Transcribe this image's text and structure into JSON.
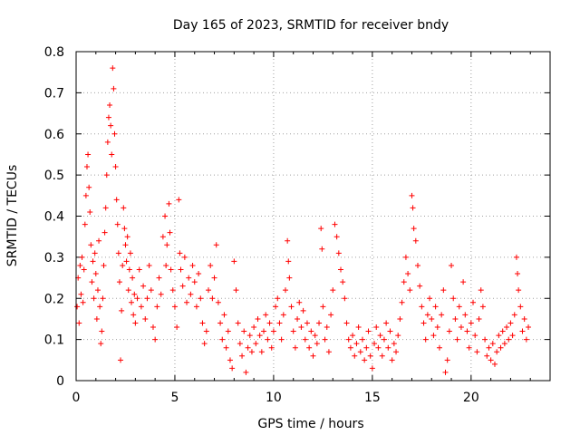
{
  "chart_data": {
    "type": "scatter",
    "title": "Day 165 of 2023, SRMTID for receiver bndy",
    "xlabel": "GPS time / hours",
    "ylabel": "SRMTID / TECUs",
    "xlim": [
      0,
      24
    ],
    "ylim": [
      0,
      0.8
    ],
    "xticks": [
      0,
      5,
      10,
      15,
      20
    ],
    "xtick_labels": [
      "0",
      "5",
      "10",
      "15",
      "20"
    ],
    "yticks": [
      0,
      0.1,
      0.2,
      0.3,
      0.4,
      0.5,
      0.6,
      0.7,
      0.8
    ],
    "ytick_labels": [
      "0",
      "0.1",
      "0.2",
      "0.3",
      "0.4",
      "0.5",
      "0.6",
      "0.7",
      "0.8"
    ],
    "grid": true,
    "marker": "plus",
    "color": "#ff0000",
    "series": [
      {
        "name": "SRMTID",
        "points": [
          [
            0.05,
            0.18
          ],
          [
            0.1,
            0.25
          ],
          [
            0.15,
            0.14
          ],
          [
            0.2,
            0.28
          ],
          [
            0.25,
            0.21
          ],
          [
            0.3,
            0.3
          ],
          [
            0.35,
            0.19
          ],
          [
            0.4,
            0.27
          ],
          [
            0.45,
            0.38
          ],
          [
            0.5,
            0.45
          ],
          [
            0.55,
            0.52
          ],
          [
            0.6,
            0.55
          ],
          [
            0.65,
            0.47
          ],
          [
            0.7,
            0.41
          ],
          [
            0.75,
            0.33
          ],
          [
            0.8,
            0.24
          ],
          [
            0.85,
            0.29
          ],
          [
            0.9,
            0.2
          ],
          [
            0.95,
            0.31
          ],
          [
            1.0,
            0.26
          ],
          [
            1.05,
            0.15
          ],
          [
            1.1,
            0.22
          ],
          [
            1.15,
            0.34
          ],
          [
            1.2,
            0.18
          ],
          [
            1.25,
            0.09
          ],
          [
            1.3,
            0.12
          ],
          [
            1.35,
            0.2
          ],
          [
            1.4,
            0.28
          ],
          [
            1.45,
            0.36
          ],
          [
            1.5,
            0.42
          ],
          [
            1.55,
            0.5
          ],
          [
            1.6,
            0.58
          ],
          [
            1.65,
            0.64
          ],
          [
            1.7,
            0.67
          ],
          [
            1.75,
            0.62
          ],
          [
            1.8,
            0.55
          ],
          [
            1.85,
            0.76
          ],
          [
            1.9,
            0.71
          ],
          [
            1.95,
            0.6
          ],
          [
            2.0,
            0.52
          ],
          [
            2.05,
            0.44
          ],
          [
            2.1,
            0.38
          ],
          [
            2.15,
            0.31
          ],
          [
            2.2,
            0.24
          ],
          [
            2.25,
            0.05
          ],
          [
            2.3,
            0.17
          ],
          [
            2.35,
            0.28
          ],
          [
            2.4,
            0.42
          ],
          [
            2.45,
            0.37
          ],
          [
            2.5,
            0.33
          ],
          [
            2.55,
            0.29
          ],
          [
            2.6,
            0.35
          ],
          [
            2.65,
            0.22
          ],
          [
            2.7,
            0.27
          ],
          [
            2.75,
            0.31
          ],
          [
            2.8,
            0.19
          ],
          [
            2.85,
            0.25
          ],
          [
            2.9,
            0.16
          ],
          [
            2.95,
            0.21
          ],
          [
            3.0,
            0.14
          ],
          [
            3.1,
            0.2
          ],
          [
            3.2,
            0.27
          ],
          [
            3.3,
            0.18
          ],
          [
            3.4,
            0.23
          ],
          [
            3.5,
            0.15
          ],
          [
            3.6,
            0.2
          ],
          [
            3.7,
            0.28
          ],
          [
            3.8,
            0.22
          ],
          [
            3.9,
            0.13
          ],
          [
            4.0,
            0.1
          ],
          [
            4.1,
            0.18
          ],
          [
            4.2,
            0.25
          ],
          [
            4.3,
            0.21
          ],
          [
            4.4,
            0.35
          ],
          [
            4.5,
            0.4
          ],
          [
            4.55,
            0.28
          ],
          [
            4.6,
            0.33
          ],
          [
            4.7,
            0.43
          ],
          [
            4.75,
            0.36
          ],
          [
            4.8,
            0.27
          ],
          [
            4.9,
            0.22
          ],
          [
            5.0,
            0.18
          ],
          [
            5.1,
            0.13
          ],
          [
            5.2,
            0.44
          ],
          [
            5.25,
            0.31
          ],
          [
            5.3,
            0.27
          ],
          [
            5.4,
            0.23
          ],
          [
            5.5,
            0.3
          ],
          [
            5.6,
            0.19
          ],
          [
            5.7,
            0.25
          ],
          [
            5.8,
            0.21
          ],
          [
            5.9,
            0.28
          ],
          [
            6.0,
            0.24
          ],
          [
            6.1,
            0.18
          ],
          [
            6.2,
            0.26
          ],
          [
            6.3,
            0.2
          ],
          [
            6.4,
            0.14
          ],
          [
            6.5,
            0.09
          ],
          [
            6.6,
            0.12
          ],
          [
            6.7,
            0.22
          ],
          [
            6.8,
            0.28
          ],
          [
            6.9,
            0.2
          ],
          [
            7.0,
            0.25
          ],
          [
            7.1,
            0.33
          ],
          [
            7.2,
            0.19
          ],
          [
            7.3,
            0.14
          ],
          [
            7.4,
            0.1
          ],
          [
            7.5,
            0.16
          ],
          [
            7.6,
            0.08
          ],
          [
            7.7,
            0.12
          ],
          [
            7.8,
            0.05
          ],
          [
            7.9,
            0.03
          ],
          [
            8.0,
            0.29
          ],
          [
            8.1,
            0.22
          ],
          [
            8.2,
            0.14
          ],
          [
            8.3,
            0.09
          ],
          [
            8.4,
            0.06
          ],
          [
            8.5,
            0.12
          ],
          [
            8.6,
            0.02
          ],
          [
            8.7,
            0.08
          ],
          [
            8.8,
            0.11
          ],
          [
            8.9,
            0.07
          ],
          [
            9.0,
            0.13
          ],
          [
            9.1,
            0.09
          ],
          [
            9.2,
            0.15
          ],
          [
            9.3,
            0.11
          ],
          [
            9.4,
            0.07
          ],
          [
            9.5,
            0.12
          ],
          [
            9.6,
            0.16
          ],
          [
            9.7,
            0.1
          ],
          [
            9.8,
            0.14
          ],
          [
            9.9,
            0.08
          ],
          [
            10.0,
            0.12
          ],
          [
            10.1,
            0.18
          ],
          [
            10.2,
            0.2
          ],
          [
            10.3,
            0.14
          ],
          [
            10.4,
            0.1
          ],
          [
            10.5,
            0.16
          ],
          [
            10.6,
            0.22
          ],
          [
            10.7,
            0.34
          ],
          [
            10.75,
            0.29
          ],
          [
            10.8,
            0.25
          ],
          [
            10.9,
            0.18
          ],
          [
            11.0,
            0.12
          ],
          [
            11.1,
            0.08
          ],
          [
            11.2,
            0.15
          ],
          [
            11.3,
            0.19
          ],
          [
            11.4,
            0.13
          ],
          [
            11.5,
            0.17
          ],
          [
            11.6,
            0.1
          ],
          [
            11.7,
            0.14
          ],
          [
            11.8,
            0.08
          ],
          [
            11.9,
            0.12
          ],
          [
            12.0,
            0.06
          ],
          [
            12.1,
            0.11
          ],
          [
            12.2,
            0.09
          ],
          [
            12.3,
            0.14
          ],
          [
            12.4,
            0.37
          ],
          [
            12.45,
            0.32
          ],
          [
            12.5,
            0.18
          ],
          [
            12.6,
            0.1
          ],
          [
            12.7,
            0.13
          ],
          [
            12.8,
            0.07
          ],
          [
            12.9,
            0.16
          ],
          [
            13.0,
            0.22
          ],
          [
            13.1,
            0.38
          ],
          [
            13.2,
            0.35
          ],
          [
            13.3,
            0.31
          ],
          [
            13.4,
            0.27
          ],
          [
            13.5,
            0.24
          ],
          [
            13.6,
            0.2
          ],
          [
            13.7,
            0.14
          ],
          [
            13.8,
            0.1
          ],
          [
            13.9,
            0.08
          ],
          [
            14.0,
            0.11
          ],
          [
            14.1,
            0.06
          ],
          [
            14.2,
            0.09
          ],
          [
            14.3,
            0.13
          ],
          [
            14.4,
            0.07
          ],
          [
            14.5,
            0.1
          ],
          [
            14.6,
            0.05
          ],
          [
            14.7,
            0.08
          ],
          [
            14.8,
            0.12
          ],
          [
            14.9,
            0.06
          ],
          [
            15.0,
            0.03
          ],
          [
            15.1,
            0.09
          ],
          [
            15.2,
            0.13
          ],
          [
            15.3,
            0.08
          ],
          [
            15.4,
            0.11
          ],
          [
            15.5,
            0.06
          ],
          [
            15.6,
            0.1
          ],
          [
            15.7,
            0.14
          ],
          [
            15.8,
            0.08
          ],
          [
            15.9,
            0.12
          ],
          [
            16.0,
            0.05
          ],
          [
            16.1,
            0.09
          ],
          [
            16.2,
            0.07
          ],
          [
            16.3,
            0.11
          ],
          [
            16.4,
            0.15
          ],
          [
            16.5,
            0.19
          ],
          [
            16.6,
            0.24
          ],
          [
            16.7,
            0.3
          ],
          [
            16.8,
            0.26
          ],
          [
            16.9,
            0.22
          ],
          [
            17.0,
            0.45
          ],
          [
            17.05,
            0.42
          ],
          [
            17.1,
            0.37
          ],
          [
            17.2,
            0.34
          ],
          [
            17.3,
            0.28
          ],
          [
            17.4,
            0.23
          ],
          [
            17.5,
            0.18
          ],
          [
            17.6,
            0.14
          ],
          [
            17.7,
            0.1
          ],
          [
            17.8,
            0.16
          ],
          [
            17.9,
            0.2
          ],
          [
            18.0,
            0.15
          ],
          [
            18.1,
            0.11
          ],
          [
            18.2,
            0.18
          ],
          [
            18.3,
            0.13
          ],
          [
            18.4,
            0.08
          ],
          [
            18.5,
            0.16
          ],
          [
            18.6,
            0.22
          ],
          [
            18.7,
            0.02
          ],
          [
            18.8,
            0.05
          ],
          [
            18.9,
            0.12
          ],
          [
            19.0,
            0.28
          ],
          [
            19.1,
            0.2
          ],
          [
            19.2,
            0.15
          ],
          [
            19.3,
            0.1
          ],
          [
            19.4,
            0.18
          ],
          [
            19.5,
            0.13
          ],
          [
            19.6,
            0.24
          ],
          [
            19.7,
            0.16
          ],
          [
            19.8,
            0.12
          ],
          [
            19.9,
            0.08
          ],
          [
            20.0,
            0.14
          ],
          [
            20.1,
            0.19
          ],
          [
            20.2,
            0.11
          ],
          [
            20.3,
            0.07
          ],
          [
            20.4,
            0.15
          ],
          [
            20.5,
            0.22
          ],
          [
            20.6,
            0.18
          ],
          [
            20.7,
            0.1
          ],
          [
            20.8,
            0.06
          ],
          [
            20.9,
            0.08
          ],
          [
            21.0,
            0.05
          ],
          [
            21.1,
            0.09
          ],
          [
            21.2,
            0.04
          ],
          [
            21.3,
            0.07
          ],
          [
            21.4,
            0.11
          ],
          [
            21.5,
            0.08
          ],
          [
            21.6,
            0.12
          ],
          [
            21.7,
            0.09
          ],
          [
            21.8,
            0.13
          ],
          [
            21.9,
            0.1
          ],
          [
            22.0,
            0.14
          ],
          [
            22.1,
            0.11
          ],
          [
            22.2,
            0.16
          ],
          [
            22.3,
            0.3
          ],
          [
            22.35,
            0.26
          ],
          [
            22.4,
            0.22
          ],
          [
            22.5,
            0.18
          ],
          [
            22.6,
            0.12
          ],
          [
            22.7,
            0.15
          ],
          [
            22.8,
            0.1
          ],
          [
            22.9,
            0.13
          ]
        ]
      }
    ]
  }
}
